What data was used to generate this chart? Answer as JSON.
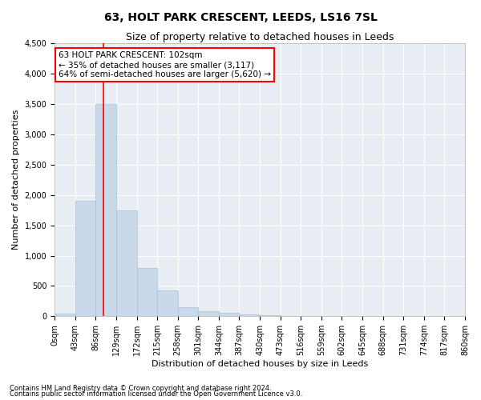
{
  "title": "63, HOLT PARK CRESCENT, LEEDS, LS16 7SL",
  "subtitle": "Size of property relative to detached houses in Leeds",
  "xlabel": "Distribution of detached houses by size in Leeds",
  "ylabel": "Number of detached properties",
  "bar_color": "#c9d9ea",
  "bar_edgecolor": "#a8c0d6",
  "vline_x": 102,
  "vline_color": "red",
  "bin_edges": [
    0,
    43,
    86,
    129,
    172,
    215,
    258,
    301,
    344,
    387,
    430,
    473,
    516,
    559,
    602,
    645,
    688,
    731,
    774,
    817,
    860
  ],
  "bar_heights": [
    50,
    1900,
    3500,
    1750,
    800,
    425,
    150,
    80,
    60,
    30,
    20,
    10,
    5,
    3,
    2,
    1,
    1,
    1,
    0,
    0
  ],
  "ylim": [
    0,
    4500
  ],
  "yticks": [
    0,
    500,
    1000,
    1500,
    2000,
    2500,
    3000,
    3500,
    4000,
    4500
  ],
  "annotation_text": "63 HOLT PARK CRESCENT: 102sqm\n← 35% of detached houses are smaller (3,117)\n64% of semi-detached houses are larger (5,620) →",
  "annotation_box_color": "white",
  "annotation_box_edgecolor": "red",
  "footnote1": "Contains HM Land Registry data © Crown copyright and database right 2024.",
  "footnote2": "Contains public sector information licensed under the Open Government Licence v3.0.",
  "background_color": "#ffffff",
  "plot_bg_color": "#e8eef4",
  "grid_color": "#ffffff",
  "title_fontsize": 10,
  "subtitle_fontsize": 9,
  "label_fontsize": 8,
  "tick_fontsize": 7,
  "footnote_fontsize": 6,
  "annotation_fontsize": 7.5
}
